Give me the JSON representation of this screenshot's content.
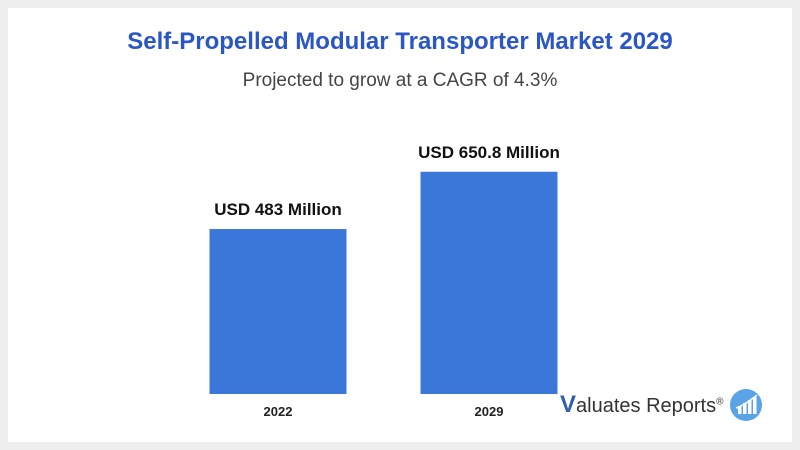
{
  "chart_data": {
    "type": "bar",
    "title": "Self-Propelled Modular Transporter Market 2029",
    "subtitle": "Projected to grow at a  CAGR of 4.3%",
    "categories": [
      "2022",
      "2029"
    ],
    "values": [
      483,
      650.8
    ],
    "data_labels": [
      "USD 483 Million",
      "USD 650.8 Million"
    ],
    "unit": "USD Million",
    "xlabel": "",
    "ylabel": "",
    "grid": false,
    "bar_color": "#3b77d9"
  },
  "brand": {
    "initial": "V",
    "rest": "aluates Reports",
    "registered": "®",
    "colors": {
      "primary": "#2f5fb4",
      "accent": "#5aa3e6"
    }
  }
}
